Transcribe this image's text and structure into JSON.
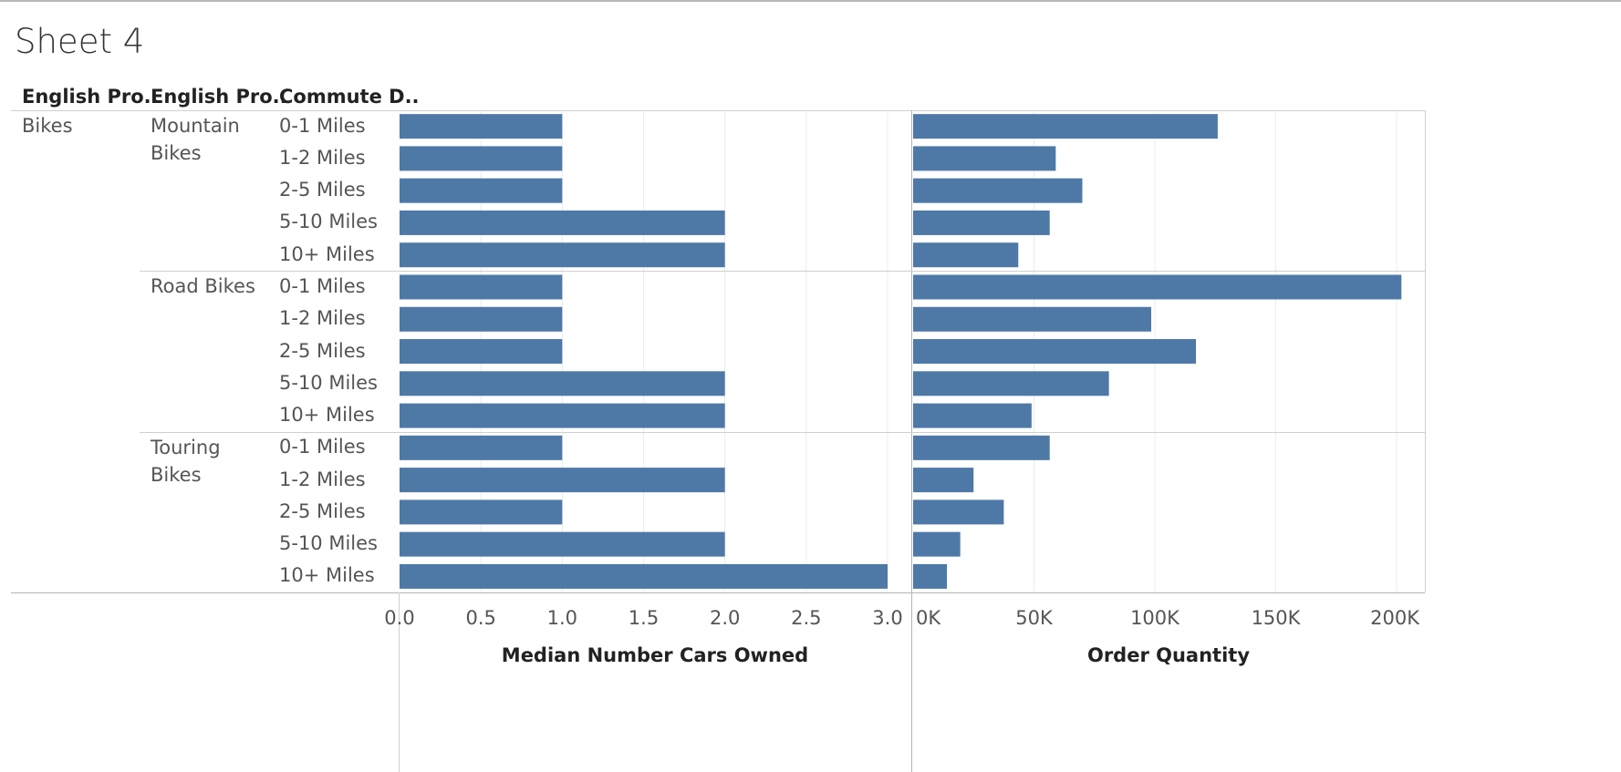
{
  "sheet_title": "Sheet 4",
  "headers": [
    "English Pro..",
    "English Pro..",
    "Commute D.."
  ],
  "category": "Bikes",
  "chart_data": {
    "type": "bar",
    "colors": {
      "bar": "#4E79A7",
      "grid": "#ececec",
      "divider": "#cfcfcf"
    },
    "groups": [
      {
        "label_lines": [
          "Mountain",
          "Bikes"
        ],
        "rows": [
          {
            "commute": "0-1 Miles",
            "cars": 1,
            "orders": 126000
          },
          {
            "commute": "1-2 Miles",
            "cars": 1,
            "orders": 59000
          },
          {
            "commute": "2-5 Miles",
            "cars": 1,
            "orders": 70000
          },
          {
            "commute": "5-10 Miles",
            "cars": 2,
            "orders": 56500
          },
          {
            "commute": "10+ Miles",
            "cars": 2,
            "orders": 43500
          }
        ]
      },
      {
        "label_lines": [
          "Road Bikes"
        ],
        "rows": [
          {
            "commute": "0-1 Miles",
            "cars": 1,
            "orders": 202000
          },
          {
            "commute": "1-2 Miles",
            "cars": 1,
            "orders": 98500
          },
          {
            "commute": "2-5 Miles",
            "cars": 1,
            "orders": 117000
          },
          {
            "commute": "5-10 Miles",
            "cars": 2,
            "orders": 81000
          },
          {
            "commute": "10+ Miles",
            "cars": 2,
            "orders": 49000
          }
        ]
      },
      {
        "label_lines": [
          "Touring",
          "Bikes"
        ],
        "rows": [
          {
            "commute": "0-1 Miles",
            "cars": 1,
            "orders": 56500
          },
          {
            "commute": "1-2 Miles",
            "cars": 2,
            "orders": 25000
          },
          {
            "commute": "2-5 Miles",
            "cars": 1,
            "orders": 37500
          },
          {
            "commute": "5-10 Miles",
            "cars": 2,
            "orders": 19500
          },
          {
            "commute": "10+ Miles",
            "cars": 3,
            "orders": 14000
          }
        ]
      }
    ],
    "x1": {
      "label": "Median Number Cars Owned",
      "min": 0,
      "max": 3.0,
      "ticks": [
        0,
        0.5,
        1,
        1.5,
        2,
        2.5,
        3
      ],
      "tick_labels": [
        "0.0",
        "0.5",
        "1.0",
        "1.5",
        "2.0",
        "2.5",
        "3.0"
      ]
    },
    "x2": {
      "label": "Order Quantity",
      "min": 0,
      "max": 200000,
      "ticks": [
        0,
        50000,
        100000,
        150000,
        200000
      ],
      "tick_labels": [
        "0K",
        "50K",
        "100K",
        "150K",
        "200K"
      ]
    },
    "grid": true
  }
}
